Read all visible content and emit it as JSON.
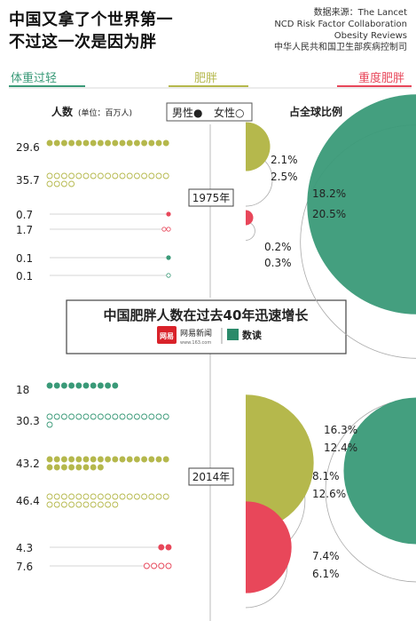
{
  "header": {
    "title_line1": "中国又拿了个世界第一",
    "title_line2": "不过这一次是因为胖",
    "source_lines": [
      "数据来源：The Lancet",
      "NCD Risk Factor Collaboration",
      "Obesity Reviews",
      "中华人民共和国卫生部疾病控制司"
    ]
  },
  "legend": {
    "underweight": "体重过轻",
    "obese": "肥胖",
    "severely_obese": "重度肥胖",
    "people_label": "人数",
    "unit_label": "(单位：百万人)",
    "male_label": "男性●",
    "female_label": "女性○",
    "share_label": "占全球比例"
  },
  "banner": {
    "headline": "中国肥胖人数在过去40年迅速增长",
    "logo_netease": "网易",
    "logo_news": "网易新闻",
    "logo_news_url": "www.163.com",
    "logo_data": "数读"
  },
  "colors": {
    "underweight": "#3a9a78",
    "obese": "#b5b84c",
    "severely_obese": "#e8475a",
    "outline": "#aaaaaa",
    "text": "#333333"
  },
  "chart_data": {
    "type": "proportional-dots-and-circles",
    "unit": "百万人",
    "years": [
      {
        "year": "1975年",
        "rows": [
          {
            "category": "肥胖",
            "sex": "男性",
            "people": "29.6",
            "share": "2.1%"
          },
          {
            "category": "肥胖",
            "sex": "女性",
            "people": "35.7",
            "share": "2.5%"
          },
          {
            "category": "重度肥胖",
            "sex": "男性",
            "people": "0.7",
            "share": "0.2%"
          },
          {
            "category": "重度肥胖",
            "sex": "女性",
            "people": "1.7",
            "share": "0.3%"
          },
          {
            "category": "体重过轻",
            "sex": "男性",
            "people": "0.1",
            "share": "18.2%"
          },
          {
            "category": "体重过轻",
            "sex": "女性",
            "people": "0.1",
            "share": "20.5%"
          }
        ]
      },
      {
        "year": "2014年",
        "rows": [
          {
            "category": "体重过轻",
            "sex": "男性",
            "people": "18",
            "share": "8.1%"
          },
          {
            "category": "体重过轻",
            "sex": "女性",
            "people": "30.3",
            "share": "12.6%"
          },
          {
            "category": "肥胖",
            "sex": "男性",
            "people": "43.2",
            "share": "16.3%"
          },
          {
            "category": "肥胖",
            "sex": "女性",
            "people": "46.4",
            "share": "12.4%"
          },
          {
            "category": "重度肥胖",
            "sex": "男性",
            "people": "4.3",
            "share": "7.4%"
          },
          {
            "category": "重度肥胖",
            "sex": "女性",
            "people": "7.6",
            "share": "6.1%"
          }
        ]
      }
    ]
  }
}
